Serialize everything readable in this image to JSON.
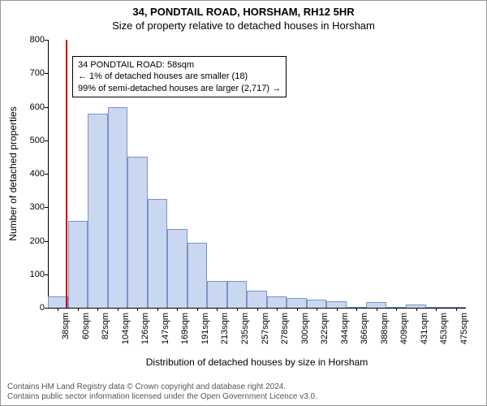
{
  "title": "34, PONDTAIL ROAD, HORSHAM, RH12 5HR",
  "subtitle": "Size of property relative to detached houses in Horsham",
  "chart": {
    "type": "histogram",
    "y_label": "Number of detached properties",
    "x_label": "Distribution of detached houses by size in Horsham",
    "ylim": [
      0,
      800
    ],
    "ytick_step": 100,
    "yticks": [
      0,
      100,
      200,
      300,
      400,
      500,
      600,
      700,
      800
    ],
    "xlabels": [
      "38sqm",
      "60sqm",
      "82sqm",
      "104sqm",
      "126sqm",
      "147sqm",
      "169sqm",
      "191sqm",
      "213sqm",
      "235sqm",
      "257sqm",
      "278sqm",
      "300sqm",
      "322sqm",
      "344sqm",
      "366sqm",
      "388sqm",
      "409sqm",
      "431sqm",
      "453sqm",
      "475sqm"
    ],
    "values": [
      35,
      260,
      580,
      600,
      450,
      325,
      235,
      195,
      80,
      80,
      50,
      35,
      30,
      25,
      20,
      3,
      18,
      0,
      10,
      0,
      0
    ],
    "bar_fill": "#c9d7f0",
    "bar_stroke": "#7a93c8",
    "background": "#ffffff",
    "axis_color": "#000000",
    "tick_fontsize": 11,
    "label_fontsize": 12,
    "marker": {
      "position_index": 0.9,
      "color": "#cc0000"
    },
    "annotation": {
      "line1": "34 PONDTAIL ROAD: 58sqm",
      "line2": "← 1% of detached houses are smaller (18)",
      "line3": "99% of semi-detached houses are larger (2,717) →"
    }
  },
  "footer": {
    "line1": "Contains HM Land Registry data © Crown copyright and database right 2024.",
    "line2": "Contains public sector information licensed under the Open Government Licence v3.0."
  }
}
